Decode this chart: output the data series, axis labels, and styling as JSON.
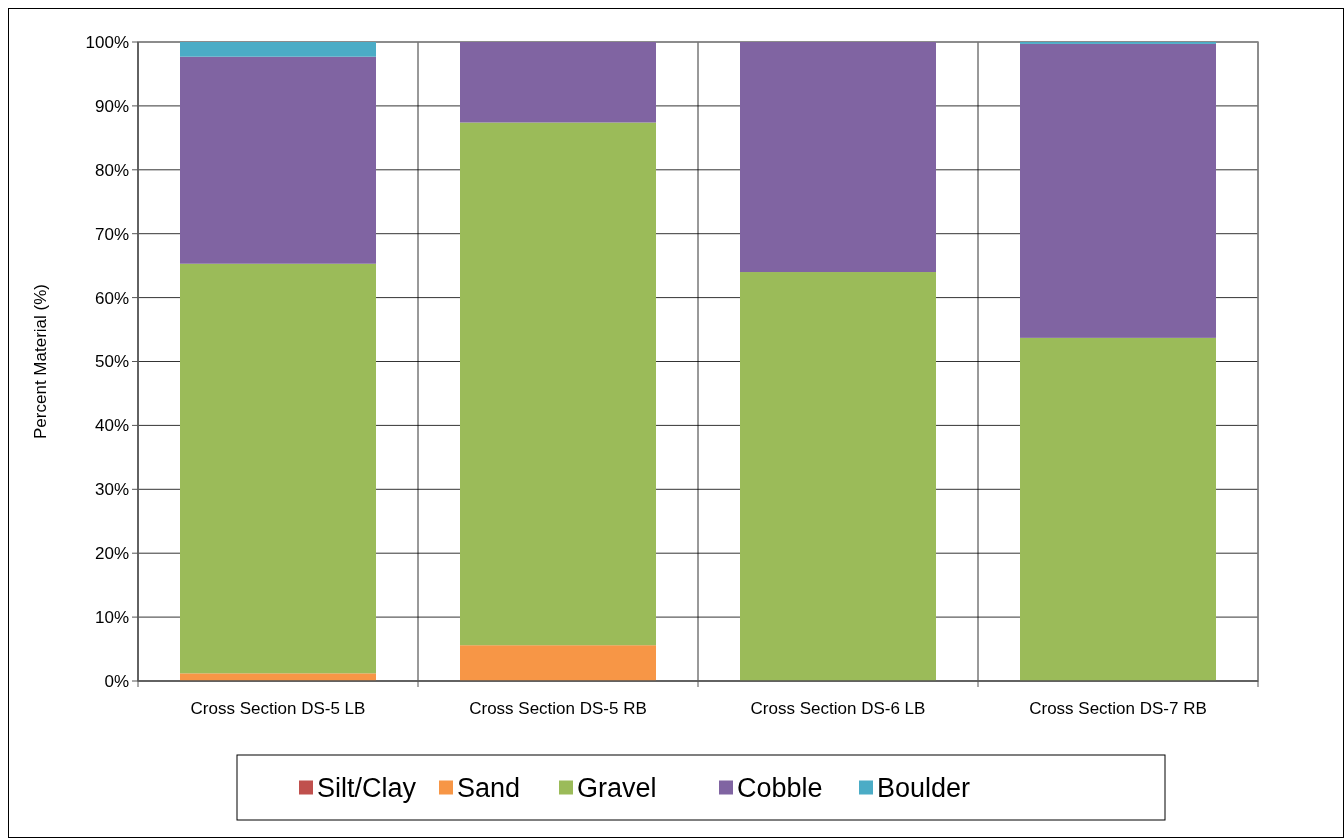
{
  "chart_data": {
    "type": "bar",
    "stacked": true,
    "ylabel": "Percent Material (%)",
    "categories": [
      "Cross Section DS-5 LB",
      "Cross Section DS-5 RB",
      "Cross Section DS-6 LB",
      "Cross Section DS-7 RB"
    ],
    "series": [
      {
        "name": "Silt/Clay",
        "color": "#c0504d",
        "values": [
          0,
          0,
          0,
          0
        ]
      },
      {
        "name": "Sand",
        "color": "#f79646",
        "values": [
          1.2,
          5.6,
          0,
          0
        ]
      },
      {
        "name": "Gravel",
        "color": "#9bbb59",
        "values": [
          64.1,
          81.8,
          64,
          53.7
        ]
      },
      {
        "name": "Cobble",
        "color": "#8064a2",
        "values": [
          32.4,
          12.6,
          36,
          46
        ]
      },
      {
        "name": "Boulder",
        "color": "#4bacc6",
        "values": [
          2.3,
          0,
          0,
          0.3
        ]
      }
    ],
    "ylim": [
      0,
      100
    ],
    "yticks": [
      {
        "value": 0,
        "label": "0%"
      },
      {
        "value": 10,
        "label": "10%"
      },
      {
        "value": 20,
        "label": "20%"
      },
      {
        "value": 30,
        "label": "30%"
      },
      {
        "value": 40,
        "label": "40%"
      },
      {
        "value": 50,
        "label": "50%"
      },
      {
        "value": 60,
        "label": "60%"
      },
      {
        "value": 70,
        "label": "70%"
      },
      {
        "value": 80,
        "label": "80%"
      },
      {
        "value": 90,
        "label": "90%"
      },
      {
        "value": 100,
        "label": "100%"
      }
    ],
    "grid": true,
    "legend": "bottom"
  }
}
